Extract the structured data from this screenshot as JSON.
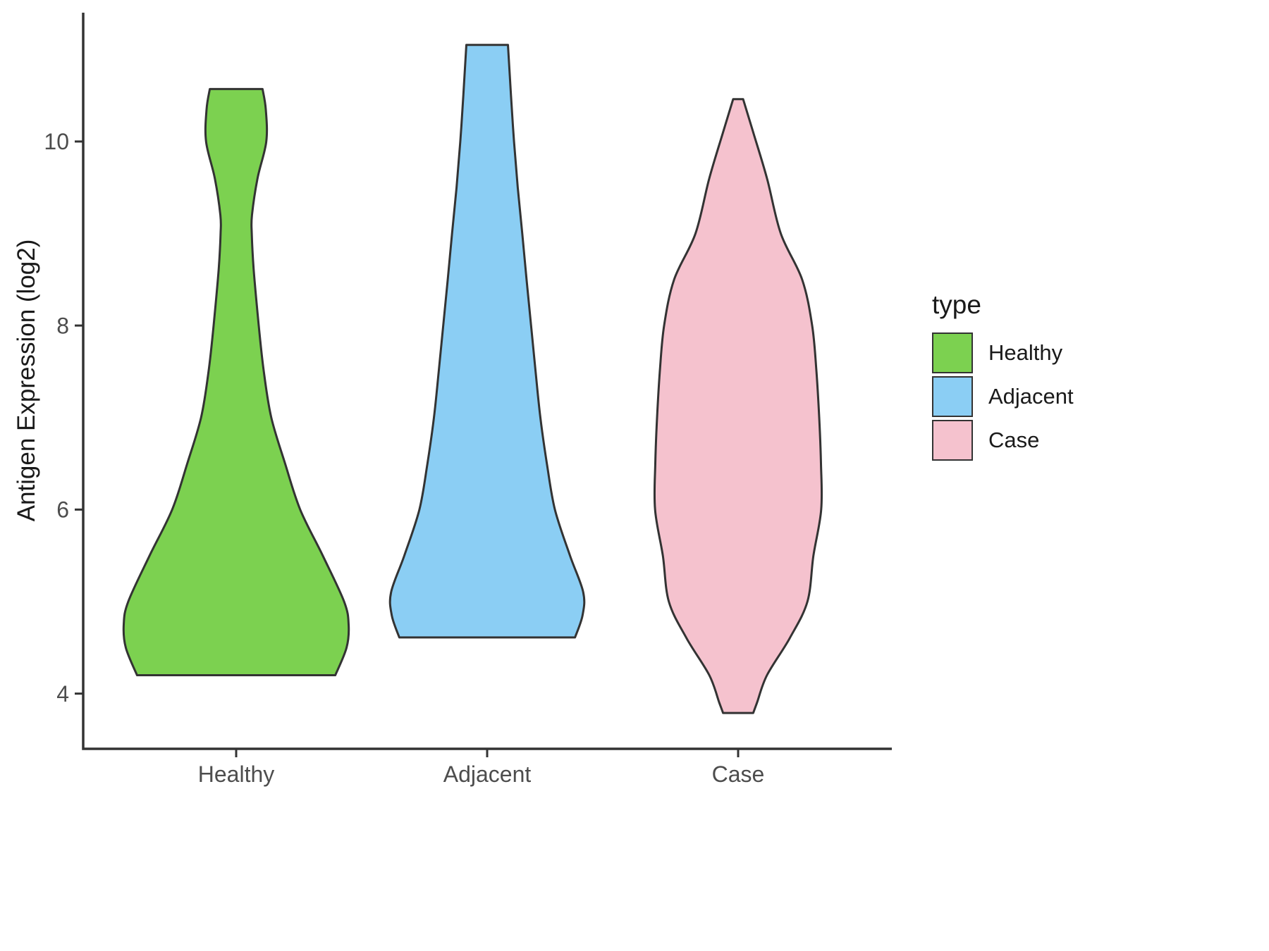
{
  "chart_data": {
    "type": "violin",
    "title": "",
    "xlabel": "",
    "ylabel": "Antigen Expression (log2)",
    "categories": [
      "Healthy",
      "Adjacent",
      "Case"
    ],
    "yticks": [
      4,
      6,
      8,
      10
    ],
    "ylim": [
      3.4,
      11.4
    ],
    "grid": "off",
    "legend": {
      "title": "type",
      "position": "right"
    },
    "outline_color": "#333333",
    "axis_color": "#333333",
    "tick_label_color": "#4d4d4d",
    "series": [
      {
        "name": "Healthy",
        "color": "#7cd150",
        "profile": [
          [
            10.57,
            0.105
          ],
          [
            10.35,
            0.118
          ],
          [
            10.0,
            0.12
          ],
          [
            9.6,
            0.085
          ],
          [
            9.2,
            0.063
          ],
          [
            9.0,
            0.062
          ],
          [
            8.6,
            0.07
          ],
          [
            8.0,
            0.09
          ],
          [
            7.5,
            0.11
          ],
          [
            7.0,
            0.14
          ],
          [
            6.5,
            0.195
          ],
          [
            6.0,
            0.255
          ],
          [
            5.5,
            0.345
          ],
          [
            5.0,
            0.43
          ],
          [
            4.75,
            0.448
          ],
          [
            4.5,
            0.44
          ],
          [
            4.2,
            0.395
          ]
        ]
      },
      {
        "name": "Adjacent",
        "color": "#8bcef4",
        "profile": [
          [
            11.05,
            0.083
          ],
          [
            10.5,
            0.095
          ],
          [
            10.0,
            0.107
          ],
          [
            9.5,
            0.122
          ],
          [
            9.0,
            0.14
          ],
          [
            8.5,
            0.157
          ],
          [
            8.0,
            0.175
          ],
          [
            7.5,
            0.193
          ],
          [
            7.0,
            0.212
          ],
          [
            6.5,
            0.238
          ],
          [
            6.0,
            0.27
          ],
          [
            5.5,
            0.33
          ],
          [
            5.1,
            0.383
          ],
          [
            4.85,
            0.38
          ],
          [
            4.61,
            0.35
          ]
        ]
      },
      {
        "name": "Case",
        "color": "#f5c2ce",
        "profile": [
          [
            10.46,
            0.02
          ],
          [
            10.1,
            0.06
          ],
          [
            9.6,
            0.115
          ],
          [
            9.0,
            0.17
          ],
          [
            8.5,
            0.255
          ],
          [
            8.0,
            0.295
          ],
          [
            7.5,
            0.312
          ],
          [
            7.0,
            0.323
          ],
          [
            6.5,
            0.33
          ],
          [
            6.0,
            0.331
          ],
          [
            5.5,
            0.3
          ],
          [
            5.0,
            0.276
          ],
          [
            4.6,
            0.205
          ],
          [
            4.2,
            0.115
          ],
          [
            3.9,
            0.075
          ],
          [
            3.79,
            0.06
          ]
        ]
      }
    ]
  }
}
